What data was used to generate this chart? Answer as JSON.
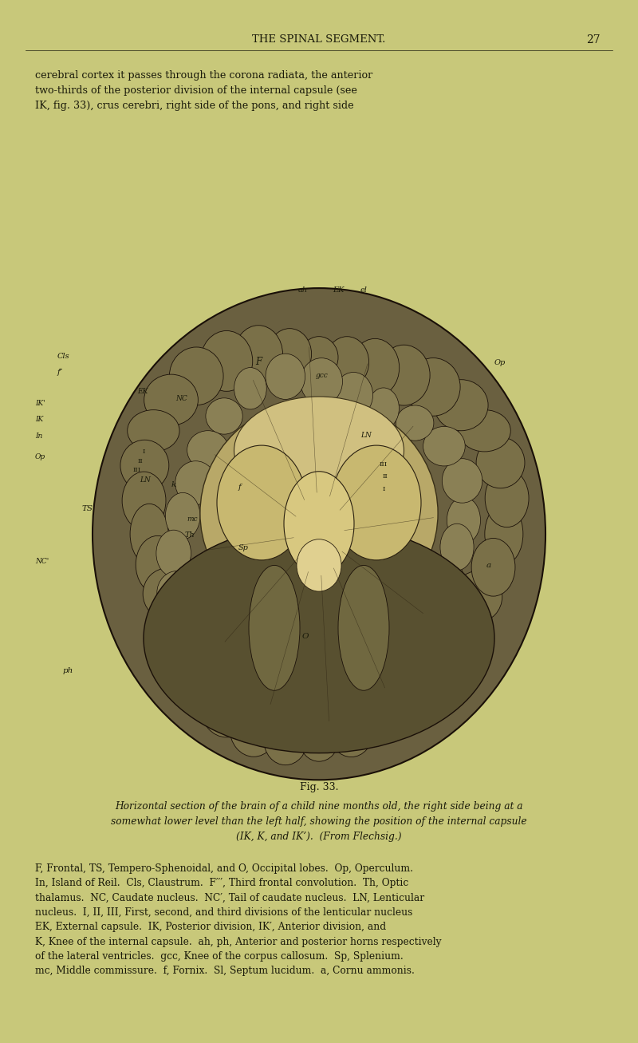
{
  "background_color": "#c8c87a",
  "header_text": "THE SPINAL SEGMENT.",
  "page_number": "27",
  "body_text_line1": "cerebral cortex it passes through the corona radiata, the anterior",
  "body_text_line2": "two-thirds of the posterior division of the internal capsule (see",
  "body_text_line3": "IK, fig. 33), crus cerebri, right side of the pons, and right side",
  "figure_caption": "Fig. 33.",
  "figure_desc_italic_line1": "Horizontal section of the brain of a child nine months old, the right side being at a",
  "figure_desc_italic_line2": "somewhat lower level than the left half, showing the position of the internal capsule",
  "figure_desc_italic_line3": "(IK, K, and IK’).  (From Flechsig.)",
  "body2_line1": "F, Frontal, TS, Tempero-Sphenoidal, and O, Occipital lobes.  Op, Operculum.",
  "body2_line2": "In, Island of Reil.  Cls, Claustrum.  F′′′, Third frontal convolution.  Th, Optic",
  "body2_line3": "thalamus.  NC, Caudate nucleus.  NC′, Tail of caudate nucleus.  LN, Lenticular",
  "body2_line4": "nucleus.  I, II, III, First, second, and third divisions of the lenticular nucleus",
  "body2_line5": "EK, External capsule.  IK, Posterior division, IK′, Anterior division, and",
  "body2_line6": "K, Knee of the internal capsule.  ah, ph, Anterior and posterior horns respectively",
  "body2_line7": "of the lateral ventricles.  gcc, Knee of the corpus callosum.  Sp, Splenium.",
  "body2_line8": "mc, Middle commissure.  f, Fornix.  Sl, Septum lucidum.  a, Cornu ammonis.",
  "text_color": "#1a1a0a"
}
